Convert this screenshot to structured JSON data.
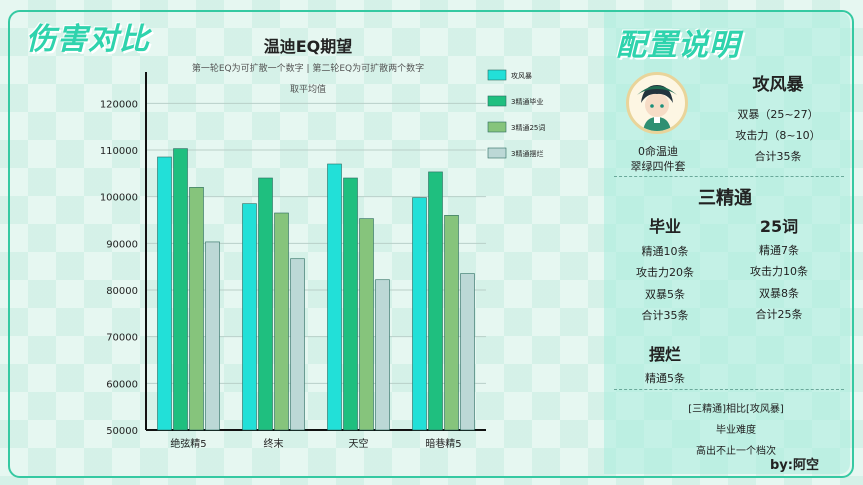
{
  "left_title": "伤害对比",
  "right_title": "配置说明",
  "chart_data": {
    "type": "bar",
    "title": "温迪EQ期望",
    "subtitle_line1": "第一轮EQ为可扩散一个数字 | 第二轮EQ为可扩散两个数字",
    "subtitle_line2": "取平均值",
    "categories": [
      "绝弦精5",
      "终末",
      "天空",
      "暗巷精5"
    ],
    "series": [
      {
        "name": "攻风暴",
        "color": "#22e0d8",
        "values": [
          108500,
          98500,
          107000,
          99800
        ]
      },
      {
        "name": "3精通毕业",
        "color": "#1fbf7f",
        "values": [
          110300,
          104000,
          104000,
          105300
        ]
      },
      {
        "name": "3精通25词",
        "color": "#86c47c",
        "values": [
          102000,
          96500,
          95300,
          96000
        ]
      },
      {
        "name": "3精通摆烂",
        "color": "#bcd8d6",
        "values": [
          90300,
          86700,
          82200,
          83500
        ]
      }
    ],
    "yticks": [
      "120000",
      "110000",
      "100000",
      "90000",
      "80000",
      "70000",
      "60000",
      "50000"
    ],
    "ylim": [
      50000,
      125000
    ],
    "grid": true,
    "legend_position": "top-right"
  },
  "config": {
    "avatar_caption_1": "0命温迪",
    "avatar_caption_2": "翠绿四件套",
    "gongfengbao": {
      "heading": "攻风暴",
      "lines": [
        "双暴（25~27）",
        "攻击力（8~10）",
        "合计35条"
      ]
    },
    "sanjingtong_heading": "三精通",
    "biye": {
      "heading": "毕业",
      "lines": [
        "精通10条",
        "攻击力20条",
        "双暴5条",
        "合计35条"
      ]
    },
    "ershiwu": {
      "heading": "25词",
      "lines": [
        "精通7条",
        "攻击力10条",
        "双暴8条",
        "合计25条"
      ]
    },
    "bailan": {
      "heading": "摆烂",
      "lines": [
        "精通5条"
      ]
    },
    "summary": [
      "[三精通]相比[攻风暴]",
      "毕业难度",
      "高出不止一个档次"
    ],
    "author": "by:阿空"
  }
}
